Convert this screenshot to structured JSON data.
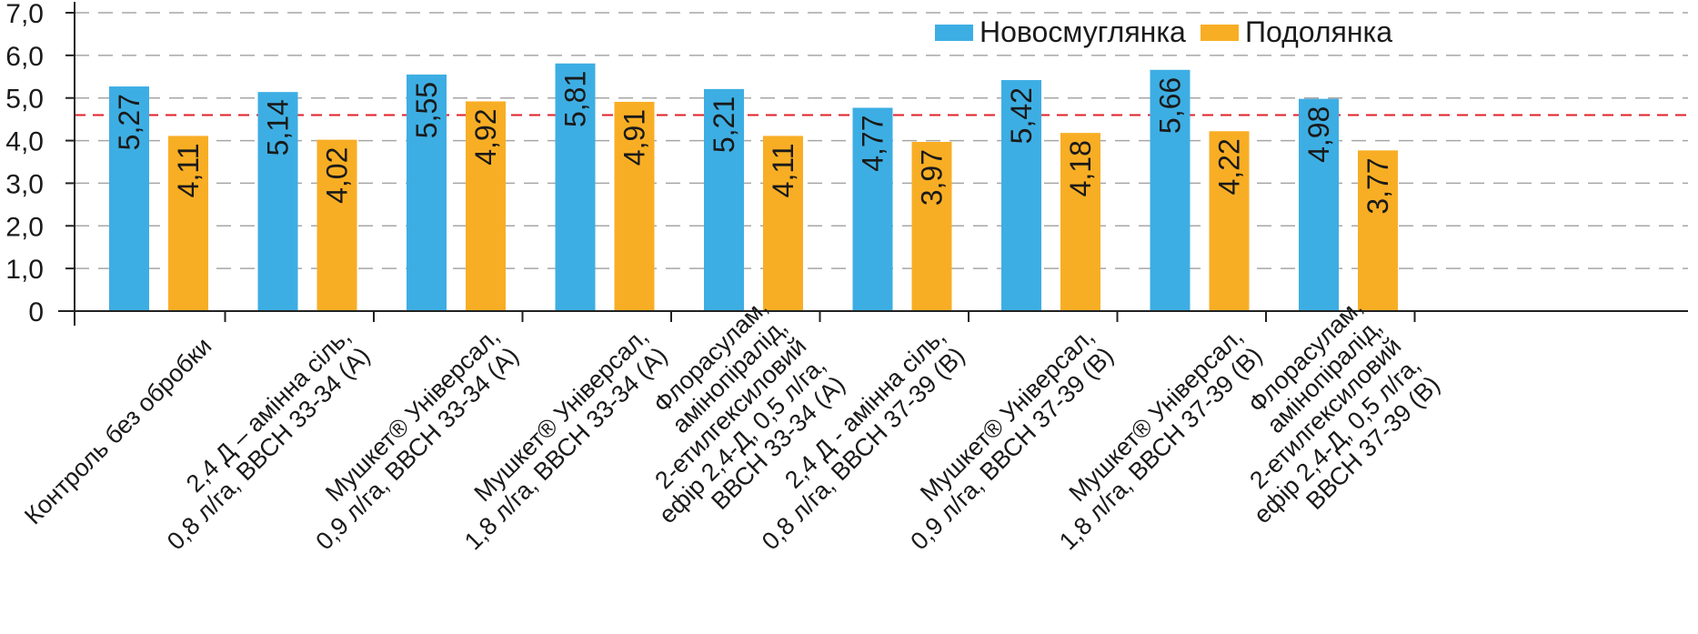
{
  "chart_data": {
    "type": "bar",
    "categories": [
      [
        "Контроль без обробки"
      ],
      [
        "2,4 Д – амінна сіль,",
        "0,8 л/га, ВВСН 33-34 (А)"
      ],
      [
        "Мушкет® Універсал,",
        "0,9 л/га, ВВСН 33-34 (А)"
      ],
      [
        "Мушкет® Універсал,",
        "1,8 л/га, ВВСН 33-34 (А)"
      ],
      [
        "Флорасулам,",
        "амінопіралід,",
        "2-етилгексиловий",
        "ефір 2,4-Д, 0,5 л/га,",
        "ВВСН 33-34 (А)"
      ],
      [
        "2,4 Д - амінна сіль,",
        "0,8 л/га, ВВСН 37-39 (В)"
      ],
      [
        "Мушкет® Універсал,",
        "0,9 л/га, ВВСН 37-39 (В)"
      ],
      [
        "Мушкет® Універсал,",
        "1,8 л/га, ВВСН 37-39 (В)"
      ],
      [
        "Флорасулам,",
        "амінопіралід,",
        "2-етилгексиловий",
        "ефір 2,4-Д, 0,5 л/га,",
        "ВВСН 37-39 (В)"
      ]
    ],
    "series": [
      {
        "name": "Новосмуглянка",
        "color": "#3daee3",
        "values": [
          5.27,
          5.14,
          5.55,
          5.81,
          5.21,
          4.77,
          5.42,
          5.66,
          4.98
        ],
        "labels": [
          "5,27",
          "5,14",
          "5,55",
          "5,81",
          "5,21",
          "4,77",
          "5,42",
          "5,66",
          "4,98"
        ]
      },
      {
        "name": "Подолянка",
        "color": "#f8ae24",
        "values": [
          4.11,
          4.02,
          4.92,
          4.91,
          4.11,
          3.97,
          4.18,
          4.22,
          3.77
        ],
        "labels": [
          "4,11",
          "4,02",
          "4,92",
          "4,91",
          "4,11",
          "3,97",
          "4,18",
          "4,22",
          "3,77"
        ]
      }
    ],
    "y_ticks": [
      0,
      1,
      2,
      3,
      4,
      5,
      6,
      7
    ],
    "y_tick_labels": [
      "0",
      "1,0",
      "2,0",
      "3,0",
      "4,0",
      "5,0",
      "6,0",
      "7,0"
    ],
    "ylim": [
      0,
      7
    ],
    "reference_line": {
      "value": 4.6,
      "color": "#e0202a",
      "style": "dashed"
    },
    "grid": {
      "y": true,
      "style": "dashed",
      "color": "#a6a6a6"
    },
    "legend": "top-right",
    "title": "",
    "xlabel": "",
    "ylabel": ""
  }
}
